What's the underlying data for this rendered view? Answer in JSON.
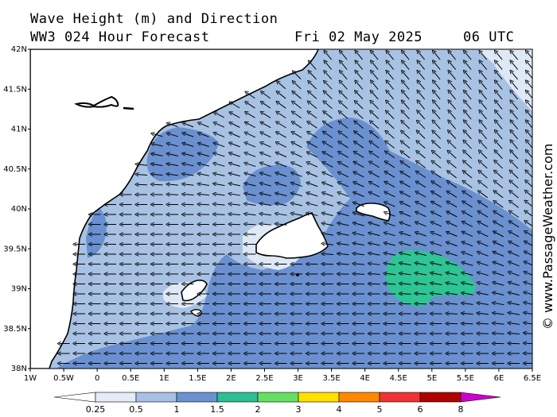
{
  "header": {
    "title": "Wave Height (m) and Direction",
    "model": "WW3 024 Hour Forecast",
    "date": "Fri 02 May 2025",
    "time": "06 UTC"
  },
  "watermark": "© www.PassageWeather.com",
  "axes": {
    "lon_ticks": [
      "1W",
      "0.5W",
      "0",
      "0.5E",
      "1E",
      "1.5E",
      "2E",
      "2.5E",
      "3E",
      "3.5E",
      "4E",
      "4.5E",
      "5E",
      "5.5E",
      "6E",
      "6.5E"
    ],
    "lat_ticks": [
      "42N",
      "41.5N",
      "41N",
      "40.5N",
      "40N",
      "39.5N",
      "39N",
      "38.5N",
      "38N"
    ]
  },
  "legend": {
    "labels": [
      "0.25",
      "0.5",
      "1",
      "1.5",
      "2",
      "3",
      "4",
      "5",
      "6",
      "8"
    ],
    "colors": [
      "#ffffff",
      "#e4ecf8",
      "#a7c0e3",
      "#6b91d1",
      "#2cbf93",
      "#66e060",
      "#ffe000",
      "#ff8800",
      "#ee3333",
      "#b00000",
      "#cc00cc"
    ]
  },
  "colors": {
    "land": "#ffffff",
    "very_low": "#dfe8f5",
    "low": "#a8c2e4",
    "mid": "#6a90d0",
    "high": "#2ec493"
  }
}
